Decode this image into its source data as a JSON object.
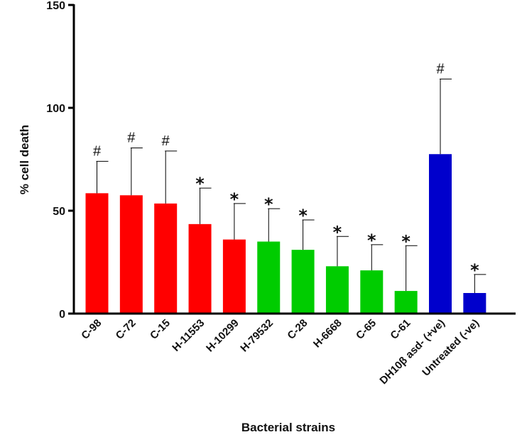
{
  "chart_data": {
    "type": "bar",
    "title": "",
    "xlabel": "Bacterial strains",
    "ylabel": "% cell death",
    "ylim": [
      0,
      150
    ],
    "yticks": [
      0,
      50,
      100,
      150
    ],
    "categories": [
      "C-98",
      "C-72",
      "C-15",
      "H-11553",
      "H-10299",
      "H-79532",
      "C-28",
      "H-6668",
      "C-65",
      "C-61",
      "DH10β asd- (+ve)",
      "Untreated (-ve)"
    ],
    "values": [
      58.5,
      57.5,
      53.5,
      43.5,
      36,
      35,
      31,
      23,
      21,
      11,
      77.5,
      10
    ],
    "error_upper": [
      74,
      80.5,
      79,
      61,
      53.5,
      51,
      45.5,
      37.5,
      33.5,
      33,
      114,
      19
    ],
    "annotations": [
      "#",
      "#",
      "#",
      "*",
      "*",
      "*",
      "*",
      "*",
      "*",
      "*",
      "#",
      "*"
    ],
    "colors": [
      "#ff0000",
      "#ff0000",
      "#ff0000",
      "#ff0000",
      "#ff0000",
      "#00cc00",
      "#00cc00",
      "#00cc00",
      "#00cc00",
      "#00cc00",
      "#0000cc",
      "#0000cc"
    ],
    "grid": false,
    "legend": "none"
  }
}
